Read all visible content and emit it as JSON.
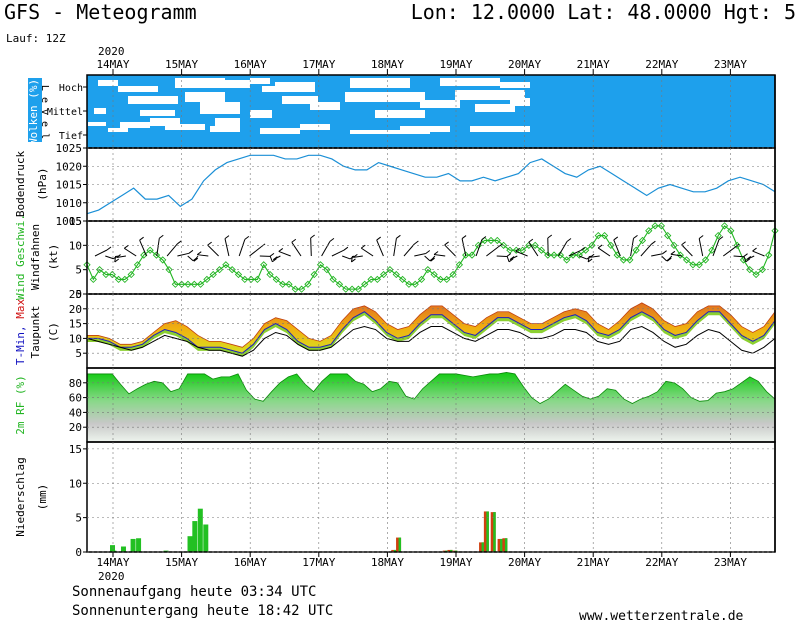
{
  "header": {
    "title": "GFS - Meteogramm",
    "location": "Lon: 12.0000 Lat: 48.0000 Hgt: 5",
    "run": "Lauf: 12Z"
  },
  "footer": {
    "sunrise": "Sonnenaufgang heute 03:34 UTC",
    "sunset": "Sonnenuntergang heute 18:42 UTC",
    "source": "www.wetterzentrale.de"
  },
  "chart_data": {
    "type": "line",
    "year": "2020",
    "days": [
      "14MAY",
      "15MAY",
      "16MAY",
      "17MAY",
      "18MAY",
      "19MAY",
      "20MAY",
      "21MAY",
      "22MAY",
      "23MAY"
    ],
    "panels": {
      "clouds": {
        "ylabel": "Wolken (%)",
        "level_label": "L e v e l",
        "levels": [
          "Hoch",
          "Mittel",
          "Tief"
        ],
        "colors": {
          "cloud": "#1ea0ec",
          "clear": "#ffffff"
        }
      },
      "pressure": {
        "ylabel": "Bodendruck",
        "unit": "(hPa)",
        "ticks": [
          "1025",
          "1020",
          "1015",
          "1010",
          "1005"
        ],
        "ylim": [
          1005,
          1025
        ],
        "color": "#1a8fd6",
        "values": [
          1007,
          1008,
          1010,
          1012,
          1014,
          1011,
          1011,
          1012,
          1009,
          1011,
          1016,
          1019,
          1021,
          1022,
          1023,
          1023,
          1023,
          1022,
          1022,
          1023,
          1023,
          1022,
          1020,
          1019,
          1019,
          1021,
          1020,
          1019,
          1018,
          1017,
          1017,
          1018,
          1016,
          1016,
          1017,
          1016,
          1017,
          1018,
          1021,
          1022,
          1020,
          1018,
          1017,
          1019,
          1020,
          1018,
          1016,
          1014,
          1012,
          1014,
          1015,
          1014,
          1013,
          1013,
          1014,
          1016,
          1017,
          1016,
          1015,
          1013
        ]
      },
      "wind": {
        "ylabel": "Wind Geschwi.",
        "ylabel2": "Windfahnen",
        "unit": "(kt)",
        "ticks": [
          "15",
          "10",
          "5",
          "0"
        ],
        "ylim": [
          0,
          15
        ],
        "color": "#22b522",
        "values": [
          6,
          3,
          5,
          4,
          4,
          3,
          3,
          4,
          6,
          8,
          9,
          8,
          7,
          5,
          2,
          2,
          2,
          2,
          2,
          3,
          4,
          5,
          6,
          5,
          4,
          3,
          3,
          3,
          6,
          4,
          3,
          2,
          2,
          1,
          1,
          2,
          4,
          6,
          5,
          3,
          2,
          1,
          1,
          1,
          2,
          3,
          3,
          4,
          5,
          4,
          3,
          2,
          2,
          3,
          5,
          4,
          3,
          3,
          4,
          6,
          8,
          8,
          10,
          11,
          11,
          11,
          10,
          9,
          9,
          9,
          10,
          10,
          9,
          8,
          8,
          8,
          7,
          8,
          8,
          9,
          10,
          12,
          12,
          10,
          8,
          7,
          7,
          9,
          11,
          13,
          14,
          14,
          12,
          10,
          8,
          7,
          6,
          6,
          7,
          9,
          12,
          14,
          13,
          10,
          7,
          5,
          4,
          5,
          8,
          13
        ]
      },
      "temperature": {
        "ylabel": "T-Min, Max",
        "ylabel2": "Taupunkt",
        "unit": "(C)",
        "ticks": [
          "25",
          "20",
          "15",
          "10",
          "5"
        ],
        "ylim": [
          0,
          25
        ],
        "t2m": [
          10,
          10,
          9,
          7,
          7,
          8,
          11,
          13,
          12,
          10,
          7,
          7,
          7,
          6,
          5,
          8,
          13,
          15,
          13,
          9,
          7,
          7,
          8,
          13,
          17,
          19,
          16,
          12,
          10,
          11,
          15,
          18,
          18,
          15,
          12,
          11,
          14,
          17,
          17,
          15,
          13,
          13,
          15,
          17,
          18,
          16,
          12,
          11,
          13,
          17,
          19,
          17,
          13,
          11,
          12,
          16,
          19,
          19,
          15,
          11,
          9,
          11,
          16
        ],
        "tmax": [
          11,
          11,
          10,
          8,
          8,
          9,
          12,
          15,
          16,
          14,
          11,
          9,
          9,
          8,
          7,
          10,
          15,
          17,
          16,
          13,
          10,
          9,
          11,
          16,
          20,
          21,
          19,
          15,
          13,
          14,
          18,
          21,
          21,
          18,
          15,
          14,
          17,
          19,
          19,
          17,
          15,
          15,
          17,
          19,
          20,
          19,
          15,
          13,
          16,
          20,
          22,
          20,
          16,
          14,
          15,
          19,
          21,
          21,
          18,
          14,
          12,
          14,
          19
        ],
        "dew": [
          10,
          9,
          8,
          7,
          6,
          7,
          9,
          11,
          10,
          9,
          7,
          6,
          6,
          5,
          4,
          6,
          10,
          12,
          11,
          8,
          6,
          6,
          7,
          10,
          13,
          14,
          13,
          10,
          9,
          9,
          12,
          14,
          14,
          12,
          10,
          9,
          11,
          13,
          13,
          12,
          10,
          10,
          11,
          13,
          13,
          12,
          9,
          8,
          9,
          13,
          14,
          12,
          9,
          7,
          8,
          11,
          13,
          12,
          9,
          6,
          5,
          7,
          10
        ]
      },
      "humidity": {
        "ylabel": "2m RF (%)",
        "ticks": [
          "80",
          "60",
          "40",
          "20"
        ],
        "ylim": [
          0,
          100
        ],
        "values": [
          92,
          92,
          92,
          92,
          78,
          65,
          72,
          78,
          82,
          80,
          68,
          72,
          92,
          92,
          92,
          85,
          88,
          88,
          92,
          70,
          58,
          55,
          68,
          80,
          88,
          92,
          78,
          68,
          82,
          92,
          92,
          92,
          82,
          78,
          68,
          72,
          82,
          80,
          62,
          58,
          72,
          82,
          92,
          92,
          92,
          90,
          88,
          90,
          92,
          92,
          94,
          92,
          75,
          60,
          52,
          58,
          68,
          78,
          70,
          62,
          58,
          62,
          72,
          70,
          58,
          52,
          58,
          62,
          68,
          82,
          80,
          72,
          60,
          55,
          56,
          66,
          68,
          72,
          80,
          88,
          82,
          68,
          58
        ]
      },
      "precipitation": {
        "ylabel": "Niederschlag",
        "unit": "(mm)",
        "ticks": [
          "15",
          "10",
          "5",
          "0"
        ],
        "ylim": [
          0,
          16
        ],
        "bars": [
          {
            "x": 0.0,
            "v": 1.0
          },
          {
            "x": 0.02,
            "v": 0.2
          },
          {
            "x": 0.16,
            "v": 0.8
          },
          {
            "x": 0.3,
            "v": 1.9
          },
          {
            "x": 0.38,
            "v": 2.0
          },
          {
            "x": 0.78,
            "v": 0.2
          },
          {
            "x": 1.13,
            "v": 2.3
          },
          {
            "x": 1.2,
            "v": 4.5
          },
          {
            "x": 1.28,
            "v": 6.3
          },
          {
            "x": 1.36,
            "v": 4.0
          },
          {
            "x": 4.1,
            "v": 0.3
          },
          {
            "x": 4.17,
            "v": 2.1
          },
          {
            "x": 4.85,
            "v": 0.2
          },
          {
            "x": 4.92,
            "v": 0.3
          },
          {
            "x": 4.99,
            "v": 0.2
          },
          {
            "x": 5.38,
            "v": 1.4
          },
          {
            "x": 5.45,
            "v": 5.9
          },
          {
            "x": 5.55,
            "v": 5.8
          },
          {
            "x": 5.65,
            "v": 1.9
          },
          {
            "x": 5.72,
            "v": 2.0
          }
        ]
      }
    }
  }
}
